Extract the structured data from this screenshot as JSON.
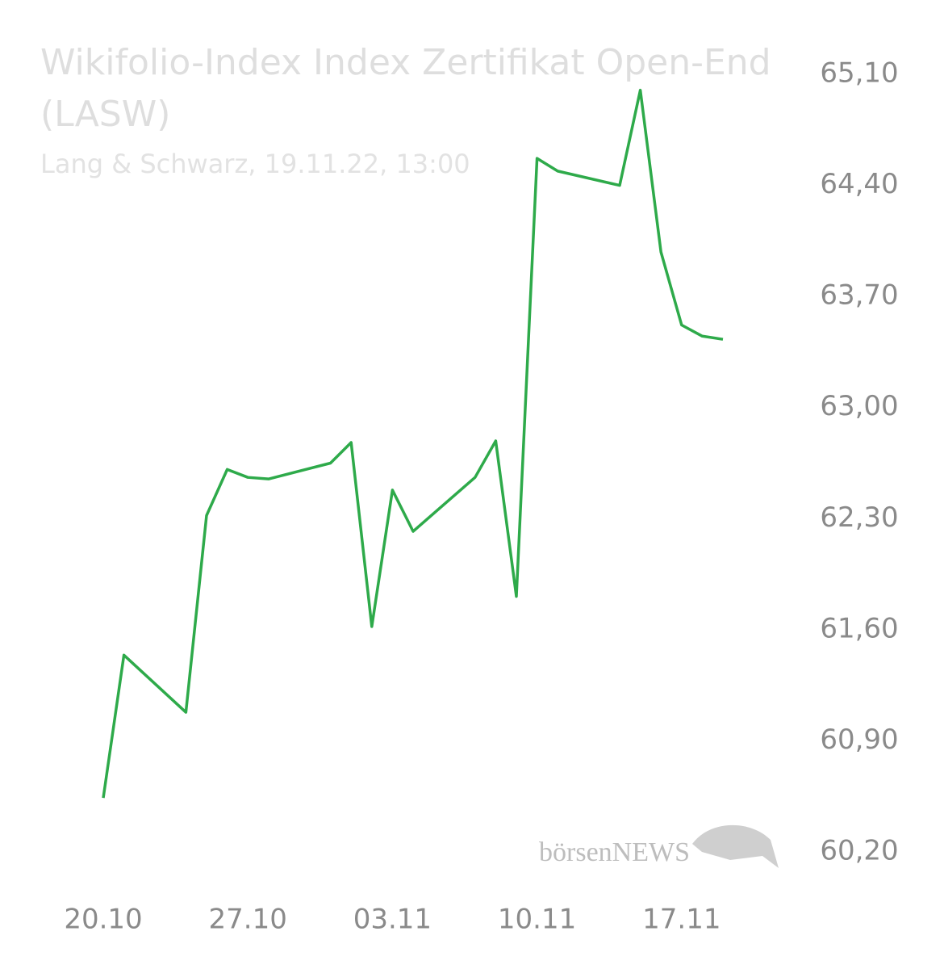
{
  "chart_data": {
    "type": "line",
    "title": "Wikifolio-Index Index Zertifikat Open-End (LASW)",
    "subtitle": "Lang & Schwarz, 19.11.22, 13:00",
    "watermark": "börsenNEWS",
    "x": [
      "20.10",
      "21.10",
      "24.10",
      "25.10",
      "26.10",
      "27.10",
      "28.10",
      "31.10",
      "01.11",
      "02.11",
      "03.11",
      "04.11",
      "07.11",
      "08.11",
      "09.11",
      "10.11",
      "11.11",
      "14.11",
      "15.11",
      "16.11",
      "17.11",
      "18.11",
      "19.11"
    ],
    "series": [
      {
        "color": "#2eaa4a",
        "values": [
          60.54,
          61.44,
          61.08,
          62.32,
          62.61,
          62.56,
          62.55,
          62.65,
          62.78,
          61.62,
          62.48,
          62.22,
          62.56,
          62.79,
          61.81,
          64.57,
          64.49,
          64.4,
          65.0,
          63.98,
          63.52,
          63.45,
          63.43
        ]
      }
    ],
    "xticks": [
      "20.10",
      "27.10",
      "03.11",
      "10.11",
      "17.11"
    ],
    "ylim": [
      60.2,
      65.1
    ],
    "yticks": [
      {
        "value": 60.2,
        "label": "60,20"
      },
      {
        "value": 60.9,
        "label": "60,90"
      },
      {
        "value": 61.6,
        "label": "61,60"
      },
      {
        "value": 62.3,
        "label": "62,30"
      },
      {
        "value": 63.0,
        "label": "63,00"
      },
      {
        "value": 63.7,
        "label": "63,70"
      },
      {
        "value": 64.4,
        "label": "64,40"
      },
      {
        "value": 65.1,
        "label": "65,10"
      }
    ],
    "grid": false
  }
}
